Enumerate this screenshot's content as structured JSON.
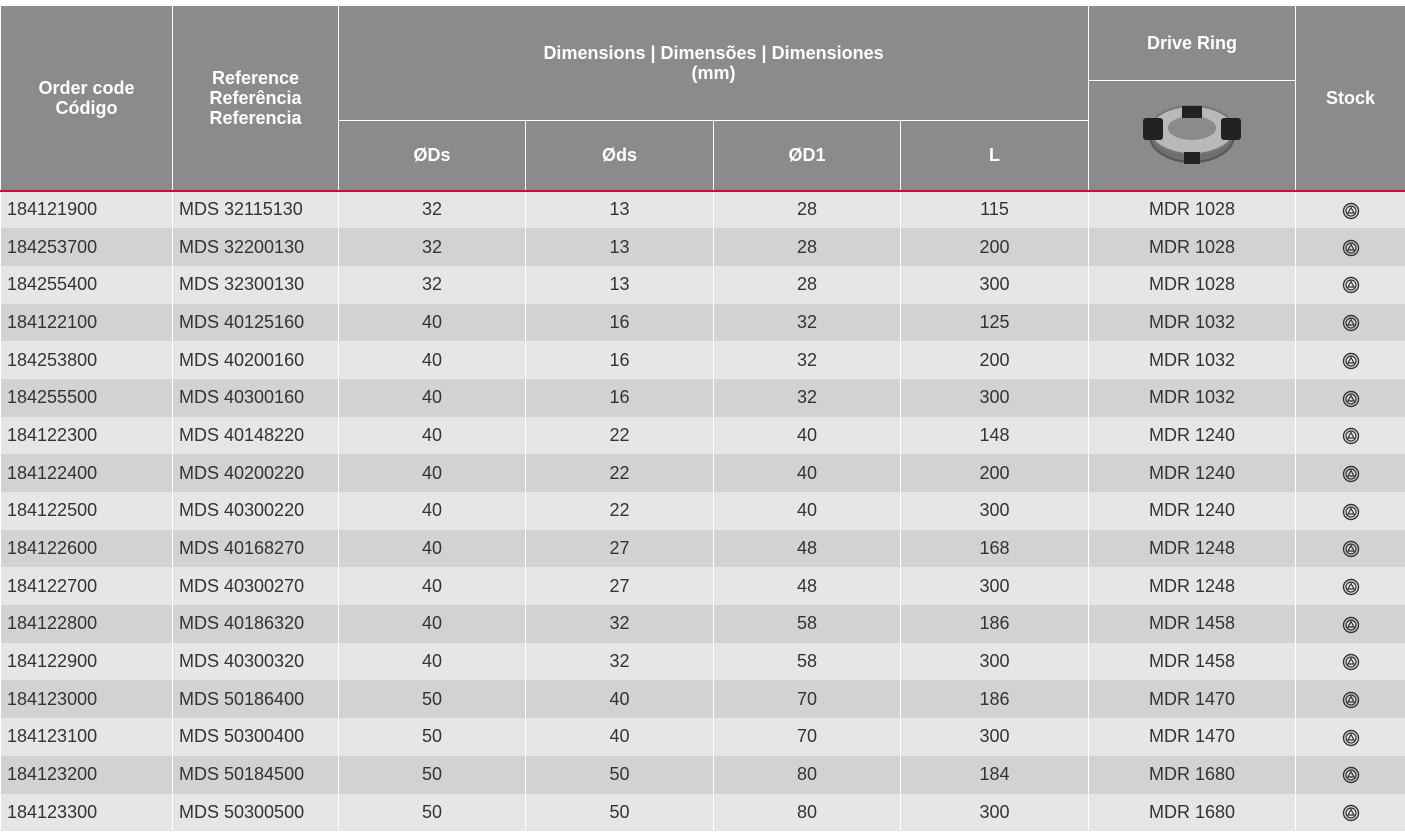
{
  "header": {
    "order_code": [
      "Order code",
      "Código"
    ],
    "reference": [
      "Reference",
      "Referência",
      "Referencia"
    ],
    "dimensions": [
      "Dimensions | Dimensões | Dimensiones",
      "(mm)"
    ],
    "drive_ring": "Drive Ring",
    "stock": "Stock",
    "sub": [
      "ØDs",
      "Øds",
      "ØD1",
      "L"
    ]
  },
  "table": {
    "rows": [
      [
        "184121900",
        "MDS 32115130",
        32,
        13,
        28,
        115,
        "MDR 1028"
      ],
      [
        "184253700",
        "MDS 32200130",
        32,
        13,
        28,
        200,
        "MDR 1028"
      ],
      [
        "184255400",
        "MDS 32300130",
        32,
        13,
        28,
        300,
        "MDR 1028"
      ],
      [
        "184122100",
        "MDS 40125160",
        40,
        16,
        32,
        125,
        "MDR 1032"
      ],
      [
        "184253800",
        "MDS 40200160",
        40,
        16,
        32,
        200,
        "MDR 1032"
      ],
      [
        "184255500",
        "MDS 40300160",
        40,
        16,
        32,
        300,
        "MDR 1032"
      ],
      [
        "184122300",
        "MDS 40148220",
        40,
        22,
        40,
        148,
        "MDR 1240"
      ],
      [
        "184122400",
        "MDS 40200220",
        40,
        22,
        40,
        200,
        "MDR 1240"
      ],
      [
        "184122500",
        "MDS 40300220",
        40,
        22,
        40,
        300,
        "MDR 1240"
      ],
      [
        "184122600",
        "MDS 40168270",
        40,
        27,
        48,
        168,
        "MDR 1248"
      ],
      [
        "184122700",
        "MDS 40300270",
        40,
        27,
        48,
        300,
        "MDR 1248"
      ],
      [
        "184122800",
        "MDS 40186320",
        40,
        32,
        58,
        186,
        "MDR 1458"
      ],
      [
        "184122900",
        "MDS 40300320",
        40,
        32,
        58,
        300,
        "MDR 1458"
      ],
      [
        "184123000",
        "MDS 50186400",
        50,
        40,
        70,
        186,
        "MDR 1470"
      ],
      [
        "184123100",
        "MDS 50300400",
        50,
        40,
        70,
        300,
        "MDR 1470"
      ],
      [
        "184123200",
        "MDS 50184500",
        50,
        50,
        80,
        184,
        "MDR 1680"
      ],
      [
        "184123300",
        "MDS 50300500",
        50,
        50,
        80,
        300,
        "MDR 1680"
      ]
    ]
  }
}
